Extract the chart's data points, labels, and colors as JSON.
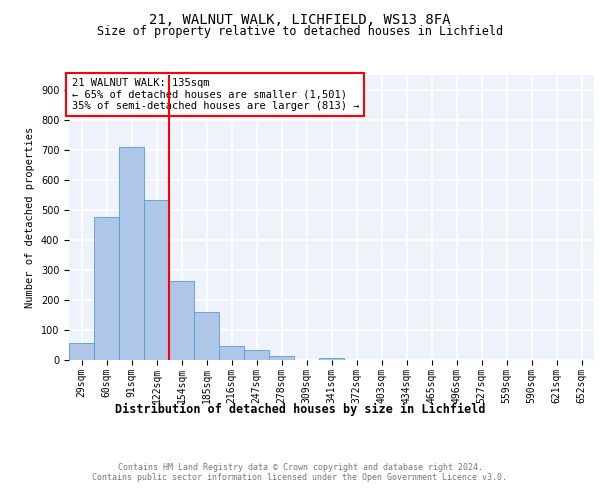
{
  "title1": "21, WALNUT WALK, LICHFIELD, WS13 8FA",
  "title2": "Size of property relative to detached houses in Lichfield",
  "xlabel": "Distribution of detached houses by size in Lichfield",
  "ylabel": "Number of detached properties",
  "bin_labels": [
    "29sqm",
    "60sqm",
    "91sqm",
    "122sqm",
    "154sqm",
    "185sqm",
    "216sqm",
    "247sqm",
    "278sqm",
    "309sqm",
    "341sqm",
    "372sqm",
    "403sqm",
    "434sqm",
    "465sqm",
    "496sqm",
    "527sqm",
    "559sqm",
    "590sqm",
    "621sqm",
    "652sqm"
  ],
  "bar_heights": [
    57,
    476,
    710,
    533,
    265,
    160,
    48,
    33,
    13,
    0,
    8,
    0,
    0,
    0,
    0,
    0,
    0,
    0,
    0,
    0,
    0
  ],
  "bar_color": "#AEC6E8",
  "bar_edge_color": "#5B9BD5",
  "vline_x": 3.5,
  "vline_color": "red",
  "annotation_text": "21 WALNUT WALK: 135sqm\n← 65% of detached houses are smaller (1,501)\n35% of semi-detached houses are larger (813) →",
  "annotation_box_color": "white",
  "annotation_box_edge_color": "red",
  "ylim": [
    0,
    950
  ],
  "yticks": [
    0,
    100,
    200,
    300,
    400,
    500,
    600,
    700,
    800,
    900
  ],
  "footer_text": "Contains HM Land Registry data © Crown copyright and database right 2024.\nContains public sector information licensed under the Open Government Licence v3.0.",
  "bg_color": "#EEF3FB",
  "grid_color": "white",
  "title_fontsize": 10,
  "subtitle_fontsize": 8.5,
  "xlabel_fontsize": 8.5,
  "ylabel_fontsize": 7.5,
  "tick_fontsize": 7,
  "annotation_fontsize": 7.5,
  "footer_fontsize": 6,
  "footer_color": "#777777"
}
